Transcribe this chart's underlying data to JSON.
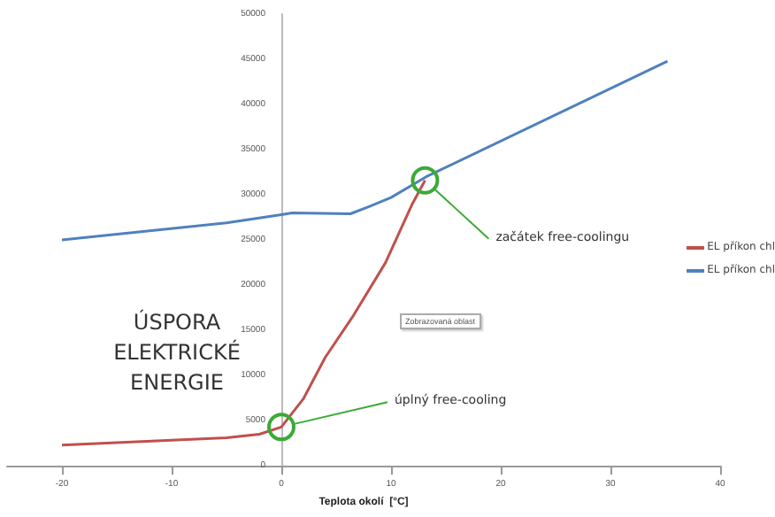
{
  "chart_data": {
    "type": "line",
    "xlabel": "Teplota okolí  [°C]",
    "xlim": [
      -25,
      40
    ],
    "xticks": [
      -20,
      -10,
      0,
      10,
      20,
      30,
      40
    ],
    "ylim": [
      0,
      50000
    ],
    "yticks": [
      0,
      5000,
      10000,
      15000,
      20000,
      25000,
      30000,
      35000,
      40000,
      45000,
      50000
    ],
    "series": [
      {
        "name": "EL příkon chl",
        "color": "#c0504d",
        "x": [
          -20,
          -5,
          -2,
          0,
          2,
          4,
          6.6,
          9.5,
          11.9,
          13.1
        ],
        "values": [
          2300,
          3100,
          3500,
          4300,
          7400,
          12000,
          16700,
          22500,
          28900,
          31600
        ]
      },
      {
        "name": "EL příkon chl",
        "color": "#4f81bd",
        "x": [
          -20,
          -5,
          0,
          1,
          6.3,
          8,
          10,
          13.2,
          35.2
        ],
        "values": [
          25000,
          26900,
          27800,
          28000,
          27900,
          28700,
          29700,
          32000,
          44800
        ]
      }
    ],
    "annotations": [
      "ÚSPORA ELEKTRICKÉ ENERGIE",
      "Zobrazovaná oblast",
      {
        "text": "úplný free-cooling",
        "x": 0,
        "y": 4300
      },
      {
        "text": "začátek free-coolingu",
        "x": 13.1,
        "y": 31600
      }
    ],
    "legend": "right",
    "grid": false,
    "marker": "none",
    "line_style": "solid"
  }
}
